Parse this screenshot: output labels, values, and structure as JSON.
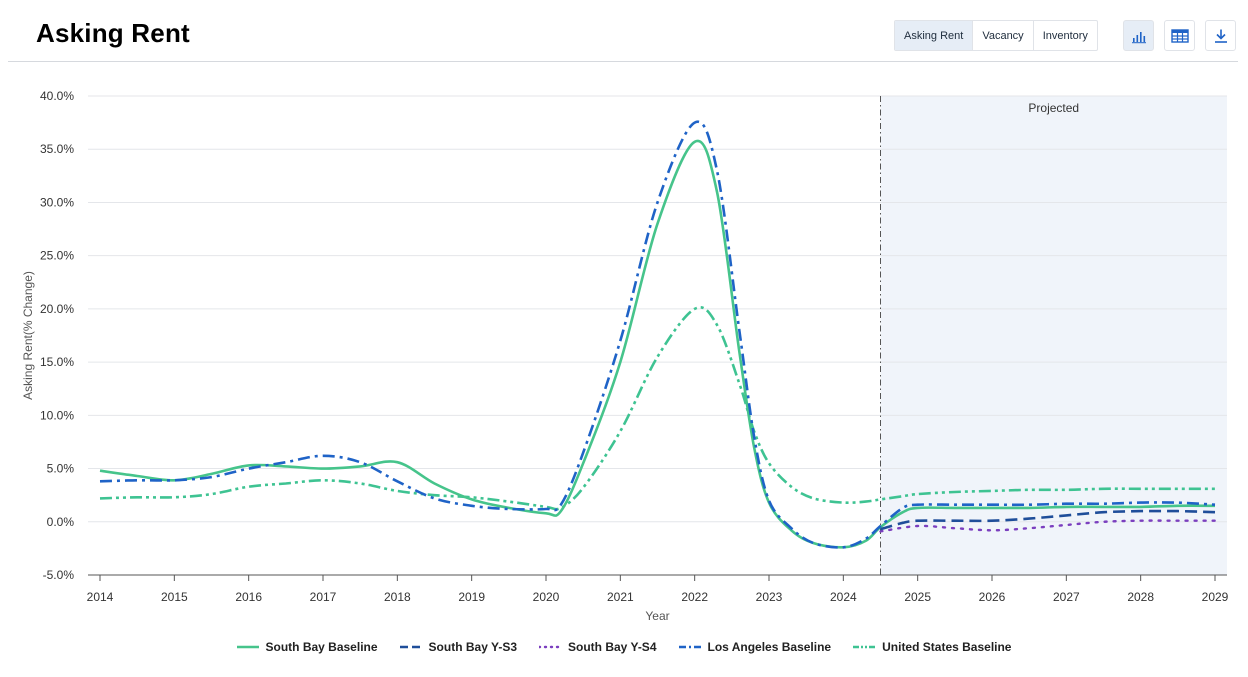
{
  "header": {
    "title": "Asking Rent",
    "tabs": [
      {
        "label": "Asking Rent",
        "active": true
      },
      {
        "label": "Vacancy",
        "active": false
      },
      {
        "label": "Inventory",
        "active": false
      }
    ],
    "icons": {
      "chart": "bar-chart-icon",
      "table": "table-icon",
      "download": "download-icon"
    }
  },
  "chart_data": {
    "type": "line",
    "xlabel": "Year",
    "ylabel": "Asking Rent(% Change)",
    "xlim": [
      2014,
      2029
    ],
    "ylim": [
      -5,
      40
    ],
    "x_ticks": [
      "2014",
      "2015",
      "2016",
      "2017",
      "2018",
      "2019",
      "2020",
      "2021",
      "2022",
      "2023",
      "2024",
      "2025",
      "2026",
      "2027",
      "2028",
      "2029"
    ],
    "y_ticks": [
      "-5.0%",
      "0.0%",
      "5.0%",
      "10.0%",
      "15.0%",
      "20.0%",
      "25.0%",
      "30.0%",
      "35.0%",
      "40.0%"
    ],
    "grid": true,
    "projection": {
      "start": 2024.5,
      "label": "Projected",
      "fill": "#f0f4fa"
    },
    "series": [
      {
        "name": "South Bay Baseline",
        "color": "#46c48b",
        "dash": "solid",
        "width": 2.6,
        "points": [
          [
            2014,
            4.8
          ],
          [
            2014.5,
            4.3
          ],
          [
            2015,
            3.9
          ],
          [
            2015.5,
            4.5
          ],
          [
            2016,
            5.3
          ],
          [
            2016.5,
            5.2
          ],
          [
            2017,
            5.0
          ],
          [
            2017.5,
            5.2
          ],
          [
            2018,
            5.6
          ],
          [
            2018.5,
            3.6
          ],
          [
            2019,
            2.1
          ],
          [
            2019.5,
            1.3
          ],
          [
            2020,
            0.8
          ],
          [
            2020.2,
            1.0
          ],
          [
            2020.5,
            5.5
          ],
          [
            2021,
            15.0
          ],
          [
            2021.5,
            28.0
          ],
          [
            2022,
            35.7
          ],
          [
            2022.3,
            31.0
          ],
          [
            2022.6,
            16.0
          ],
          [
            2022.8,
            7.0
          ],
          [
            2023,
            1.8
          ],
          [
            2023.3,
            -0.8
          ],
          [
            2023.6,
            -2.0
          ],
          [
            2024,
            -2.4
          ],
          [
            2024.3,
            -1.8
          ],
          [
            2024.5,
            -0.5
          ],
          [
            2024.8,
            0.9
          ],
          [
            2025,
            1.3
          ],
          [
            2025.5,
            1.3
          ],
          [
            2026,
            1.3
          ],
          [
            2026.5,
            1.3
          ],
          [
            2027,
            1.4
          ],
          [
            2027.5,
            1.4
          ],
          [
            2028,
            1.4
          ],
          [
            2028.5,
            1.5
          ],
          [
            2029,
            1.5
          ]
        ]
      },
      {
        "name": "South Bay Y-S3",
        "color": "#1f4e9a",
        "dash": "dash",
        "width": 2.6,
        "points": [
          [
            2024.5,
            -0.7
          ],
          [
            2024.8,
            -0.1
          ],
          [
            2025,
            0.1
          ],
          [
            2025.5,
            0.1
          ],
          [
            2026,
            0.1
          ],
          [
            2026.5,
            0.3
          ],
          [
            2027,
            0.6
          ],
          [
            2027.5,
            0.9
          ],
          [
            2028,
            1.0
          ],
          [
            2028.5,
            1.0
          ],
          [
            2029,
            0.9
          ]
        ]
      },
      {
        "name": "South Bay Y-S4",
        "color": "#7b3fbf",
        "dash": "dot",
        "width": 2.4,
        "points": [
          [
            2024.5,
            -0.9
          ],
          [
            2025,
            -0.4
          ],
          [
            2025.5,
            -0.6
          ],
          [
            2026,
            -0.8
          ],
          [
            2026.5,
            -0.6
          ],
          [
            2027,
            -0.3
          ],
          [
            2027.5,
            0.0
          ],
          [
            2028,
            0.1
          ],
          [
            2028.5,
            0.1
          ],
          [
            2029,
            0.1
          ]
        ]
      },
      {
        "name": "Los Angeles Baseline",
        "color": "#1f63c7",
        "dash": "dashdot",
        "width": 2.6,
        "points": [
          [
            2014,
            3.8
          ],
          [
            2014.5,
            3.9
          ],
          [
            2015,
            3.9
          ],
          [
            2015.5,
            4.2
          ],
          [
            2016,
            5.0
          ],
          [
            2016.5,
            5.6
          ],
          [
            2017,
            6.2
          ],
          [
            2017.5,
            5.6
          ],
          [
            2018,
            3.8
          ],
          [
            2018.5,
            2.2
          ],
          [
            2019,
            1.5
          ],
          [
            2019.5,
            1.2
          ],
          [
            2020,
            1.2
          ],
          [
            2020.2,
            1.6
          ],
          [
            2020.5,
            6.5
          ],
          [
            2021,
            17.0
          ],
          [
            2021.5,
            30.0
          ],
          [
            2022,
            37.5
          ],
          [
            2022.3,
            33.0
          ],
          [
            2022.6,
            18.0
          ],
          [
            2022.8,
            8.0
          ],
          [
            2023,
            2.0
          ],
          [
            2023.3,
            -0.6
          ],
          [
            2023.6,
            -2.0
          ],
          [
            2024,
            -2.4
          ],
          [
            2024.3,
            -1.6
          ],
          [
            2024.5,
            -0.4
          ],
          [
            2024.8,
            1.3
          ],
          [
            2025,
            1.6
          ],
          [
            2025.5,
            1.6
          ],
          [
            2026,
            1.6
          ],
          [
            2026.5,
            1.6
          ],
          [
            2027,
            1.7
          ],
          [
            2027.5,
            1.7
          ],
          [
            2028,
            1.8
          ],
          [
            2028.5,
            1.8
          ],
          [
            2029,
            1.6
          ]
        ]
      },
      {
        "name": "United States Baseline",
        "color": "#3ec392",
        "dash": "dashdotdot",
        "width": 2.6,
        "points": [
          [
            2014,
            2.2
          ],
          [
            2014.5,
            2.3
          ],
          [
            2015,
            2.3
          ],
          [
            2015.5,
            2.6
          ],
          [
            2016,
            3.3
          ],
          [
            2016.5,
            3.6
          ],
          [
            2017,
            3.9
          ],
          [
            2017.5,
            3.6
          ],
          [
            2018,
            2.9
          ],
          [
            2018.5,
            2.5
          ],
          [
            2019,
            2.3
          ],
          [
            2019.5,
            1.9
          ],
          [
            2020,
            1.4
          ],
          [
            2020.2,
            1.3
          ],
          [
            2020.5,
            3.2
          ],
          [
            2021,
            8.5
          ],
          [
            2021.5,
            15.5
          ],
          [
            2022,
            20.0
          ],
          [
            2022.3,
            18.5
          ],
          [
            2022.6,
            13.0
          ],
          [
            2022.8,
            8.5
          ],
          [
            2023,
            5.5
          ],
          [
            2023.3,
            3.3
          ],
          [
            2023.6,
            2.2
          ],
          [
            2024,
            1.8
          ],
          [
            2024.3,
            1.9
          ],
          [
            2024.5,
            2.1
          ],
          [
            2024.8,
            2.4
          ],
          [
            2025,
            2.6
          ],
          [
            2025.5,
            2.8
          ],
          [
            2026,
            2.9
          ],
          [
            2026.5,
            3.0
          ],
          [
            2027,
            3.0
          ],
          [
            2027.5,
            3.1
          ],
          [
            2028,
            3.1
          ],
          [
            2028.5,
            3.1
          ],
          [
            2029,
            3.1
          ]
        ]
      }
    ]
  }
}
